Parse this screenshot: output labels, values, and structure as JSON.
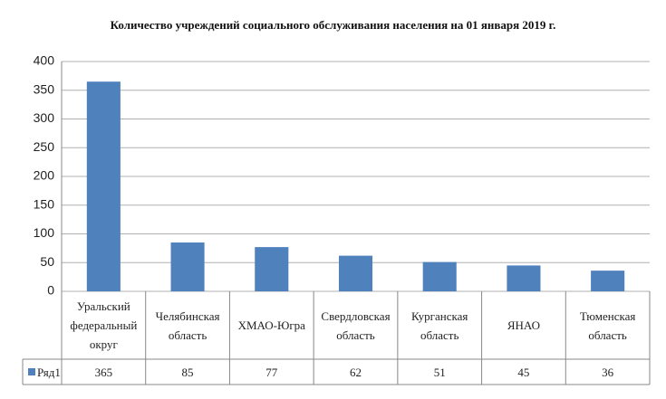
{
  "chart_data": {
    "type": "bar",
    "title": "Количество учреждений социального обслуживания населения на 01 января 2019 г.",
    "categories": [
      "Уральский федеральный округ",
      "Челябинская область",
      "ХМАО-Югра",
      "Свердловская область",
      "Курганская область",
      "ЯНАО",
      "Тюменская область"
    ],
    "series": [
      {
        "name": "Ряд1",
        "color": "#4f81bd",
        "values": [
          365,
          85,
          77,
          62,
          51,
          45,
          36
        ]
      }
    ],
    "ylim": [
      0,
      400
    ],
    "yticks": [
      0,
      50,
      100,
      150,
      200,
      250,
      300,
      350,
      400
    ],
    "grid": true
  }
}
